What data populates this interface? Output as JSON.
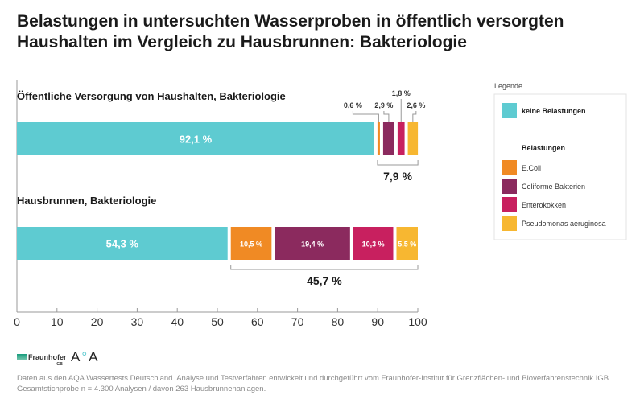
{
  "title": "Belastungen in untersuchten Wasserproben in öffentlich versorgten Haushalten im Vergleich zu Hausbrunnen: Bakteriologie",
  "chart_data": {
    "type": "bar",
    "orientation": "horizontal-stacked",
    "xlim": [
      0,
      100
    ],
    "xticks": [
      "0",
      "10",
      "20",
      "30",
      "40",
      "50",
      "60",
      "70",
      "80",
      "90",
      "100"
    ],
    "colors": {
      "keine Belastungen": "#5ecbd1",
      "E.Coli": "#f08a24",
      "Coliforme Bakterien": "#8b2a5e",
      "Enterokokken": "#c8205f",
      "Pseudomonas aeruginosa": "#f7b731"
    },
    "bars": [
      {
        "label": "Öffentliche Versorgung von Haushalten, Bakteriologie",
        "segments": [
          {
            "series": "keine Belastungen",
            "value": 92.1,
            "text": "92,1 %"
          },
          {
            "series": "E.Coli",
            "value": 0.6,
            "text": "0,6 %"
          },
          {
            "series": "Coliforme Bakterien",
            "value": 2.9,
            "text": "2,9 %"
          },
          {
            "series": "Enterokokken",
            "value": 1.8,
            "text": "1,8 %"
          },
          {
            "series": "Pseudomonas aeruginosa",
            "value": 2.6,
            "text": "2,6 %"
          }
        ],
        "total_burden": "7,9 %"
      },
      {
        "label": "Hausbrunnen, Bakteriologie",
        "segments": [
          {
            "series": "keine Belastungen",
            "value": 54.3,
            "text": "54,3 %"
          },
          {
            "series": "E.Coli",
            "value": 10.5,
            "text": "10,5 %"
          },
          {
            "series": "Coliforme Bakterien",
            "value": 19.4,
            "text": "19,4 %"
          },
          {
            "series": "Enterokokken",
            "value": 10.3,
            "text": "10,3 %"
          },
          {
            "series": "Pseudomonas aeruginosa",
            "value": 5.5,
            "text": "5,5 %"
          }
        ],
        "total_burden": "45,7 %"
      }
    ],
    "legend": {
      "title": "Legende",
      "group_label": "Belastungen",
      "items": [
        "keine Belastungen",
        "E.Coli",
        "Coliforme Bakterien",
        "Enterokokken",
        "Pseudomonas aeruginosa"
      ]
    }
  },
  "logos": {
    "fraunhofer": "Fraunhofer",
    "fraunhofer_sub": "IGB",
    "aqa": "AQA"
  },
  "footnote": "Daten aus den AQA Wassertests Deutschland. Analyse und Testverfahren entwickelt und durchgeführt vom Fraunhofer-Institut für Grenzflächen- und Bioverfahrenstechnik IGB. Gesamtstichprobe n = 4.300 Analysen / davon 263 Hausbrunnenanlagen."
}
